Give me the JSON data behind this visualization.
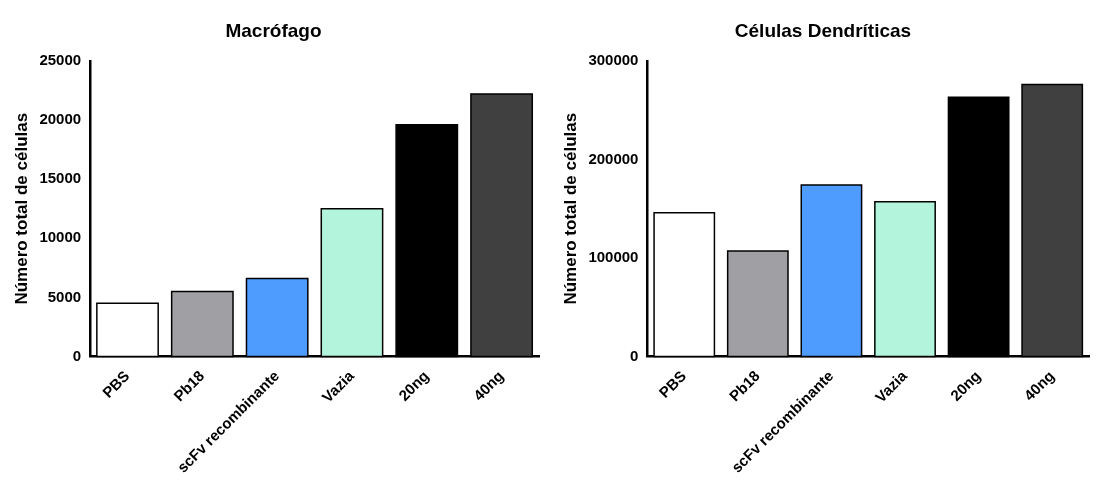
{
  "chart_data": [
    {
      "type": "bar",
      "title": "Macrófago",
      "ylabel": "Número total de células",
      "categories": [
        "PBS",
        "Pb18",
        "scFv recombinante",
        "Vazia",
        "20ng",
        "40ng"
      ],
      "values": [
        4500,
        5500,
        6600,
        12500,
        19600,
        22200
      ],
      "colors": [
        "#ffffff",
        "#a0a0a4",
        "#4f9cff",
        "#b3f5dc",
        "#000000",
        "#404040"
      ],
      "ylim": [
        0,
        25000
      ],
      "yticks": [
        0,
        5000,
        10000,
        15000,
        20000,
        25000
      ],
      "grid": false,
      "legend": false
    },
    {
      "type": "bar",
      "title": "Células Dendríticas",
      "ylabel": "Número total de células",
      "categories": [
        "PBS",
        "Pb18",
        "scFv recombinante",
        "Vazia",
        "20ng",
        "40ng"
      ],
      "values": [
        146000,
        107000,
        174000,
        157000,
        263000,
        276000
      ],
      "colors": [
        "#ffffff",
        "#a0a0a4",
        "#4f9cff",
        "#b3f5dc",
        "#000000",
        "#404040"
      ],
      "ylim": [
        0,
        300000
      ],
      "yticks": [
        0,
        100000,
        200000,
        300000
      ],
      "grid": false,
      "legend": false
    }
  ]
}
